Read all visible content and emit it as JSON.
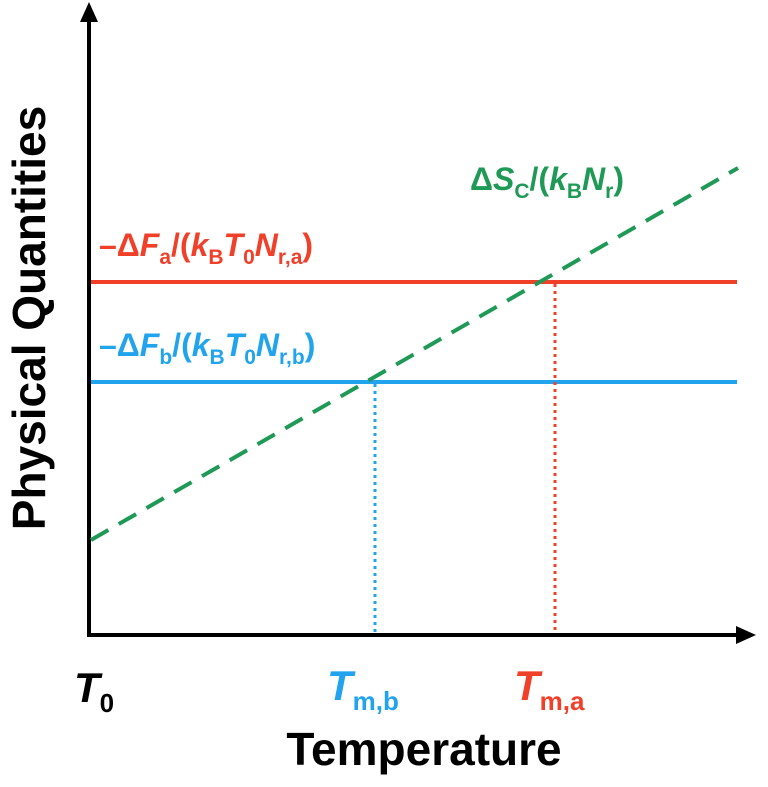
{
  "axes": {
    "x_label": "Temperature",
    "y_label": "Physical Quantities",
    "x_origin_label": {
      "main": "T",
      "sub": "0"
    }
  },
  "lines": {
    "free_energy_a": {
      "color": "#f0402a",
      "label": {
        "prefix": "–Δ",
        "F": "F",
        "F_sub": "a",
        "open": "/(",
        "k": "k",
        "k_sub": "B",
        "T": "T",
        "T_sub": "0",
        "N": "N",
        "N_sub": "r,a",
        "close": ")"
      }
    },
    "free_energy_b": {
      "color": "#21a3ee",
      "label": {
        "prefix": "–Δ",
        "F": "F",
        "F_sub": "b",
        "open": "/(",
        "k": "k",
        "k_sub": "B",
        "T": "T",
        "T_sub": "0",
        "N": "N",
        "N_sub": "r,b",
        "close": ")"
      }
    },
    "entropy_c": {
      "color": "#1f9a56",
      "label": {
        "prefix": "Δ",
        "S": "S",
        "S_sub": "C",
        "open": "/(",
        "k": "k",
        "k_sub": "B",
        "N": "N",
        "N_sub": "r",
        "close": ")"
      }
    }
  },
  "melting_points": {
    "a": {
      "main": "T",
      "sub": "m,a",
      "color": "#f0402a"
    },
    "b": {
      "main": "T",
      "sub": "m,b",
      "color": "#21a3ee"
    }
  },
  "axis_color": "#000000"
}
